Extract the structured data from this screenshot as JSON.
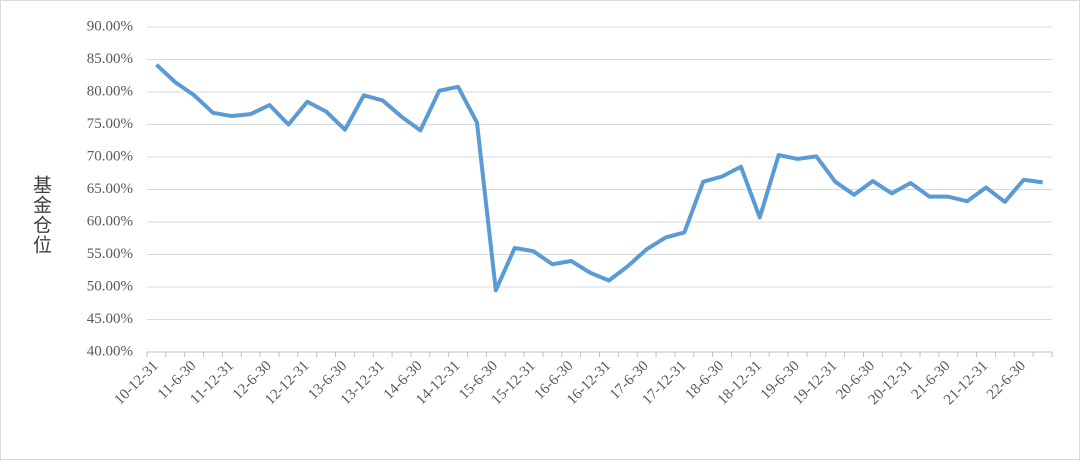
{
  "chart_data": {
    "type": "line",
    "y_label": "基金仓位",
    "categories": [
      "10-12-31",
      null,
      "11-6-30",
      null,
      "11-12-31",
      null,
      "12-6-30",
      null,
      "12-12-31",
      null,
      "13-6-30",
      null,
      "13-12-31",
      null,
      "14-6-30",
      null,
      "14-12-31",
      null,
      "15-6-30",
      null,
      "15-12-31",
      null,
      "16-6-30",
      null,
      "16-12-31",
      null,
      "17-6-30",
      null,
      "17-12-31",
      null,
      "18-6-30",
      null,
      "18-12-31",
      null,
      "19-6-30",
      null,
      "19-12-31",
      null,
      "20-6-30",
      null,
      "20-12-31",
      null,
      "21-6-30",
      null,
      "21-12-31",
      null,
      "22-6-30",
      null
    ],
    "series": [
      {
        "color": "#5b9bd5",
        "values": [
          84.2,
          81.5,
          79.5,
          76.8,
          76.3,
          76.6,
          78.0,
          75.0,
          78.5,
          77.0,
          74.2,
          79.5,
          78.7,
          76.2,
          74.1,
          80.2,
          80.8,
          75.3,
          49.5,
          56.0,
          55.5,
          53.5,
          54.0,
          52.2,
          51.0,
          53.2,
          55.8,
          57.6,
          58.4,
          66.2,
          67.0,
          68.5,
          60.7,
          70.3,
          69.7,
          70.1,
          66.2,
          64.2,
          66.3,
          64.4,
          66.0,
          63.9,
          63.9,
          63.2,
          65.3,
          63.1,
          66.5,
          66.1
        ]
      }
    ],
    "ylim": [
      40,
      90
    ],
    "yticks": [
      {
        "value": 40,
        "label": "40.00%"
      },
      {
        "value": 45,
        "label": "45.00%"
      },
      {
        "value": 50,
        "label": "50.00%"
      },
      {
        "value": 55,
        "label": "55.00%"
      },
      {
        "value": 60,
        "label": "60.00%"
      },
      {
        "value": 65,
        "label": "65.00%"
      },
      {
        "value": 70,
        "label": "70.00%"
      },
      {
        "value": 75,
        "label": "75.00%"
      },
      {
        "value": 80,
        "label": "80.00%"
      },
      {
        "value": 85,
        "label": "85.00%"
      },
      {
        "value": 90,
        "label": "90.00%"
      }
    ],
    "grid": true
  }
}
